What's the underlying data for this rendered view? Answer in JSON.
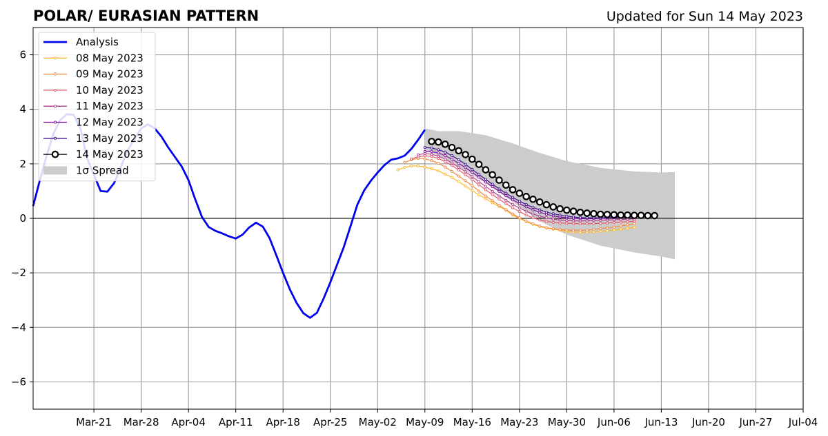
{
  "chart_data": {
    "type": "line",
    "title": "POLAR/ EURASIAN  PATTERN",
    "subtitle": "Updated for Sun 14 May 2023",
    "xlabel": "",
    "ylabel": "",
    "xlim": [
      "2023-03-12",
      "2023-07-04"
    ],
    "ylim": [
      -7,
      7
    ],
    "grid": true,
    "legend_position": "top-left",
    "x_ticks": [
      "Mar-21",
      "Mar-28",
      "Apr-04",
      "Apr-11",
      "Apr-18",
      "Apr-25",
      "May-02",
      "May-09",
      "May-16",
      "May-23",
      "May-30",
      "Jun-06",
      "Jun-13",
      "Jun-20",
      "Jun-27",
      "Jul-04"
    ],
    "x_tick_dates": [
      "2023-03-21",
      "2023-03-28",
      "2023-04-04",
      "2023-04-11",
      "2023-04-18",
      "2023-04-25",
      "2023-05-02",
      "2023-05-09",
      "2023-05-16",
      "2023-05-23",
      "2023-05-30",
      "2023-06-06",
      "2023-06-13",
      "2023-06-20",
      "2023-06-27",
      "2023-07-04"
    ],
    "y_ticks": [
      6,
      4,
      2,
      0,
      -2,
      -4,
      -6
    ],
    "y_tick_labels": [
      "6",
      "4",
      "2",
      "0",
      "−2",
      "−4",
      "−6"
    ],
    "analysis": {
      "name": "Analysis",
      "color": "#0000ee",
      "points": [
        [
          "2023-03-12",
          0.45
        ],
        [
          "2023-03-13",
          1.4
        ],
        [
          "2023-03-14",
          2.3
        ],
        [
          "2023-03-15",
          3.1
        ],
        [
          "2023-03-16",
          3.6
        ],
        [
          "2023-03-17",
          3.82
        ],
        [
          "2023-03-18",
          3.8
        ],
        [
          "2023-03-19",
          3.3
        ],
        [
          "2023-03-20",
          2.2
        ],
        [
          "2023-03-21",
          1.6
        ],
        [
          "2023-03-22",
          1.0
        ],
        [
          "2023-03-23",
          0.98
        ],
        [
          "2023-03-24",
          1.3
        ],
        [
          "2023-03-25",
          1.9
        ],
        [
          "2023-03-26",
          2.5
        ],
        [
          "2023-03-27",
          2.9
        ],
        [
          "2023-03-28",
          3.3
        ],
        [
          "2023-03-29",
          3.45
        ],
        [
          "2023-03-30",
          3.3
        ],
        [
          "2023-03-31",
          3.0
        ],
        [
          "2023-04-01",
          2.6
        ],
        [
          "2023-04-02",
          2.25
        ],
        [
          "2023-04-03",
          1.9
        ],
        [
          "2023-04-04",
          1.4
        ],
        [
          "2023-04-05",
          0.7
        ],
        [
          "2023-04-06",
          0.05
        ],
        [
          "2023-04-07",
          -0.32
        ],
        [
          "2023-04-08",
          -0.46
        ],
        [
          "2023-04-09",
          -0.55
        ],
        [
          "2023-04-10",
          -0.66
        ],
        [
          "2023-04-11",
          -0.74
        ],
        [
          "2023-04-12",
          -0.6
        ],
        [
          "2023-04-13",
          -0.33
        ],
        [
          "2023-04-14",
          -0.16
        ],
        [
          "2023-04-15",
          -0.3
        ],
        [
          "2023-04-16",
          -0.72
        ],
        [
          "2023-04-17",
          -1.35
        ],
        [
          "2023-04-18",
          -2.0
        ],
        [
          "2023-04-19",
          -2.6
        ],
        [
          "2023-04-20",
          -3.1
        ],
        [
          "2023-04-21",
          -3.48
        ],
        [
          "2023-04-22",
          -3.65
        ],
        [
          "2023-04-23",
          -3.47
        ],
        [
          "2023-04-24",
          -2.95
        ],
        [
          "2023-04-25",
          -2.35
        ],
        [
          "2023-04-26",
          -1.7
        ],
        [
          "2023-04-27",
          -1.05
        ],
        [
          "2023-04-28",
          -0.28
        ],
        [
          "2023-04-29",
          0.5
        ],
        [
          "2023-04-30",
          1.02
        ],
        [
          "2023-05-01",
          1.38
        ],
        [
          "2023-05-02",
          1.68
        ],
        [
          "2023-05-03",
          1.95
        ],
        [
          "2023-05-04",
          2.15
        ],
        [
          "2023-05-05",
          2.2
        ],
        [
          "2023-05-06",
          2.3
        ],
        [
          "2023-05-07",
          2.55
        ],
        [
          "2023-05-08",
          2.88
        ],
        [
          "2023-05-09",
          3.25
        ]
      ]
    },
    "forecasts": [
      {
        "name": "08 May 2023",
        "color": "#fbb829",
        "start": "2023-05-05",
        "values": [
          1.78,
          1.87,
          1.92,
          1.92,
          1.88,
          1.82,
          1.74,
          1.62,
          1.5,
          1.35,
          1.18,
          1.02,
          0.86,
          0.72,
          0.57,
          0.43,
          0.3,
          0.12,
          0.0,
          -0.12,
          -0.22,
          -0.3,
          -0.36,
          -0.4,
          -0.44,
          -0.48,
          -0.5,
          -0.52,
          -0.51,
          -0.5,
          -0.48,
          -0.46,
          -0.43,
          -0.4,
          -0.37,
          -0.33
        ]
      },
      {
        "name": "09 May 2023",
        "color": "#f08a48",
        "start": "2023-05-06",
        "values": [
          2.05,
          2.15,
          2.2,
          2.18,
          2.12,
          2.02,
          1.88,
          1.72,
          1.55,
          1.38,
          1.2,
          1.0,
          0.82,
          0.65,
          0.48,
          0.32,
          0.16,
          0.02,
          -0.1,
          -0.2,
          -0.28,
          -0.34,
          -0.38,
          -0.41,
          -0.43,
          -0.44,
          -0.44,
          -0.43,
          -0.41,
          -0.38,
          -0.35,
          -0.32,
          -0.28,
          -0.24,
          -0.2
        ]
      },
      {
        "name": "10 May 2023",
        "color": "#e0596c",
        "start": "2023-05-07",
        "values": [
          2.18,
          2.26,
          2.3,
          2.27,
          2.2,
          2.08,
          1.94,
          1.78,
          1.6,
          1.42,
          1.23,
          1.05,
          0.87,
          0.7,
          0.54,
          0.39,
          0.25,
          0.12,
          0.02,
          -0.06,
          -0.11,
          -0.15,
          -0.17,
          -0.18,
          -0.19,
          -0.2,
          -0.2,
          -0.19,
          -0.18,
          -0.17,
          -0.15,
          -0.14,
          -0.12,
          -0.11
        ]
      },
      {
        "name": "11 May 2023",
        "color": "#b23c8c",
        "start": "2023-05-08",
        "values": [
          2.33,
          2.38,
          2.35,
          2.28,
          2.17,
          2.03,
          1.88,
          1.71,
          1.53,
          1.35,
          1.17,
          0.99,
          0.82,
          0.66,
          0.51,
          0.38,
          0.26,
          0.16,
          0.08,
          0.02,
          -0.03,
          -0.06,
          -0.08,
          -0.09,
          -0.09,
          -0.09,
          -0.08,
          -0.07,
          -0.06,
          -0.05,
          -0.04,
          -0.03,
          -0.02
        ]
      },
      {
        "name": "12 May 2023",
        "color": "#800b9e",
        "start": "2023-05-09",
        "values": [
          2.45,
          2.45,
          2.4,
          2.3,
          2.17,
          2.02,
          1.86,
          1.69,
          1.51,
          1.33,
          1.16,
          0.99,
          0.83,
          0.68,
          0.54,
          0.42,
          0.31,
          0.22,
          0.15,
          0.09,
          0.05,
          0.02,
          0.0,
          -0.01,
          -0.01,
          -0.01,
          0.0,
          0.01,
          0.02,
          0.03,
          0.04,
          0.05
        ]
      },
      {
        "name": "13 May 2023",
        "color": "#3c0f8c",
        "start": "2023-05-09",
        "values": [
          2.6,
          2.58,
          2.52,
          2.43,
          2.3,
          2.15,
          1.98,
          1.8,
          1.61,
          1.43,
          1.25,
          1.08,
          0.92,
          0.77,
          0.63,
          0.51,
          0.4,
          0.31,
          0.23,
          0.17,
          0.12,
          0.08,
          0.05,
          0.03,
          0.02,
          0.02,
          0.02,
          0.03,
          0.04,
          0.05,
          0.06,
          0.07,
          0.08
        ]
      },
      {
        "name": "14 May 2023",
        "color": "#000000",
        "start": "2023-05-10",
        "values": [
          2.82,
          2.8,
          2.72,
          2.6,
          2.48,
          2.34,
          2.17,
          1.98,
          1.78,
          1.6,
          1.4,
          1.22,
          1.05,
          0.92,
          0.8,
          0.7,
          0.6,
          0.5,
          0.42,
          0.35,
          0.3,
          0.26,
          0.22,
          0.19,
          0.17,
          0.15,
          0.14,
          0.13,
          0.12,
          0.12,
          0.11,
          0.11,
          0.1,
          0.1
        ]
      }
    ],
    "spread": {
      "name": "1σ Spread",
      "color": "#cccccc",
      "x": [
        "2023-05-09",
        "2023-05-11",
        "2023-05-14",
        "2023-05-18",
        "2023-05-22",
        "2023-05-26",
        "2023-05-30",
        "2023-06-04",
        "2023-06-09",
        "2023-06-13",
        "2023-06-15"
      ],
      "upper": [
        3.3,
        3.2,
        3.2,
        3.05,
        2.75,
        2.4,
        2.1,
        1.85,
        1.72,
        1.68,
        1.7
      ],
      "lower": [
        2.5,
        2.3,
        1.9,
        1.3,
        0.6,
        -0.1,
        -0.6,
        -1.0,
        -1.25,
        -1.4,
        -1.5
      ]
    }
  }
}
